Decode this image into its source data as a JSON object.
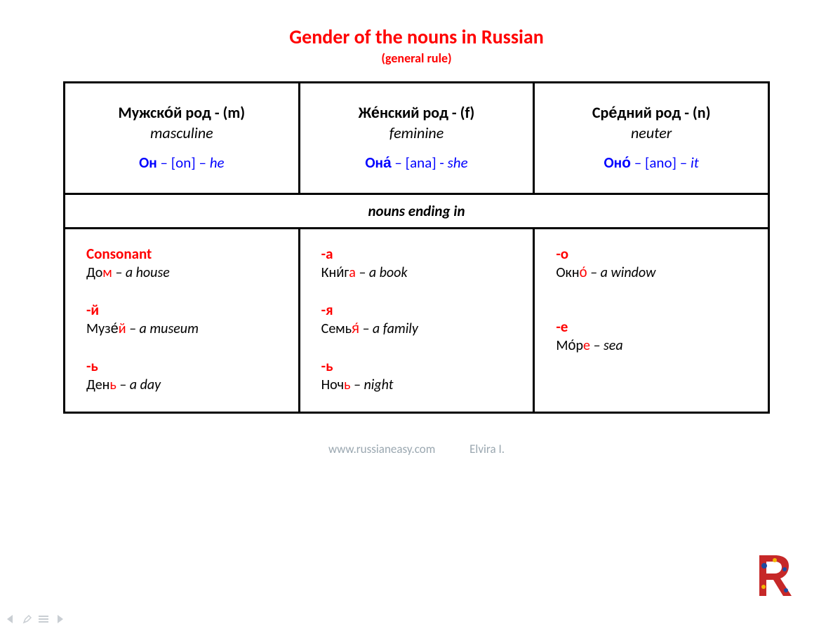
{
  "title": "Gender of the nouns in Russian",
  "subtitle": "(general   rule)",
  "middle_label": "nouns ending in",
  "columns": [
    {
      "rus_name": "Мужско́й род - (m)",
      "eng_name": "masculine",
      "pronoun_rus": "Он",
      "pronoun_ipa": "[on]",
      "pronoun_eng": "he",
      "sep1": " – ",
      "sep2": " – ",
      "endings": [
        {
          "label": "Consonant",
          "ex_pre": "До",
          "ex_hl": "м",
          "ex_post": "",
          "trans": " – a house"
        },
        {
          "label": "-й",
          "ex_pre": "Музе́",
          "ex_hl": "й",
          "ex_post": "",
          "trans": " – a museum"
        },
        {
          "label": "-ь",
          "ex_pre": "Ден",
          "ex_hl": "ь",
          "ex_post": "",
          "trans": " – a day"
        }
      ]
    },
    {
      "rus_name": "Же́нский род - (f)",
      "eng_name": "feminine",
      "pronoun_rus": "Она́",
      "pronoun_ipa": "[ana]",
      "pronoun_eng": "she",
      "sep1": " – ",
      "sep2": " - ",
      "endings": [
        {
          "label": "-а",
          "ex_pre": "Кни́г",
          "ex_hl": "а",
          "ex_post": "",
          "trans": " – a book"
        },
        {
          "label": "-я",
          "ex_pre": "Семь",
          "ex_hl": "я́",
          "ex_post": "",
          "trans": " – a family"
        },
        {
          "label": "-ь",
          "ex_pre": "Ноч",
          "ex_hl": "ь",
          "ex_post": "",
          "trans": " – night"
        }
      ]
    },
    {
      "rus_name": "Сре́дний род - (n)",
      "eng_name": "neuter",
      "pronoun_rus": "Оно́",
      "pronoun_ipa": "[ano]",
      "pronoun_eng": "it",
      "sep1": " – ",
      "sep2": " – ",
      "endings": [
        {
          "label": "-о",
          "ex_pre": "Окн",
          "ex_hl": "о́",
          "ex_post": "",
          "trans": " – a window"
        },
        {
          "label": "-е",
          "ex_pre": "Мо́р",
          "ex_hl": "е",
          "ex_post": "",
          "trans": " – sea"
        }
      ]
    }
  ],
  "footer_site": "www.russianeasy.com",
  "footer_author": "Elvira I.",
  "colors": {
    "title": "#ff0000",
    "accent_red": "#ff0000",
    "blue": "#0000ff",
    "border": "#000000",
    "footer_gray": "#9aa7b0",
    "nav_gray": "#c9ced3"
  },
  "typography": {
    "title_pt": 28,
    "subtitle_pt": 18,
    "header_pt": 22,
    "body_pt": 20,
    "footer_pt": 17,
    "font_family": "Calibri"
  }
}
